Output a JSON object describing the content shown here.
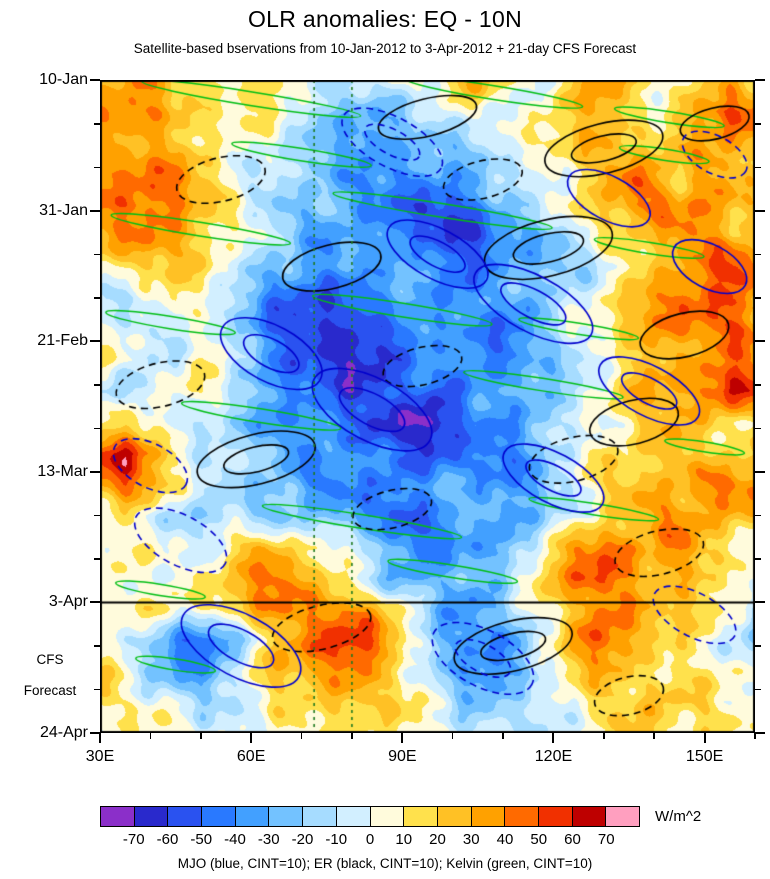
{
  "header": {
    "title": "OLR anomalies: EQ - 10N",
    "subtitle": "Satellite-based bservations from 10-Jan-2012 to 3-Apr-2012 + 21-day CFS Forecast"
  },
  "left_annotation": {
    "line1": "CFS",
    "line2": "Forecast"
  },
  "chart_data": {
    "type": "heatmap",
    "title": "OLR anomalies: EQ - 10N",
    "subtitle": "Satellite-based bservations from 10-Jan-2012 to 3-Apr-2012 + 21-day CFS Forecast",
    "units_label": "W/m^2",
    "legend": "MJO (blue, CINT=10); ER (black, CINT=10); Kelvin (green, CINT=10)",
    "x_axis": {
      "label_units": "degrees east",
      "range": [
        30,
        160
      ],
      "major_ticks": [
        30,
        60,
        90,
        120,
        150
      ],
      "major_labels": [
        "30E",
        "60E",
        "90E",
        "120E",
        "150E"
      ],
      "minor_step": 10
    },
    "y_axis": {
      "range_days": [
        0,
        105
      ],
      "major_ticks_days": [
        0,
        21,
        42,
        63,
        84,
        105
      ],
      "major_labels": [
        "10-Jan",
        "31-Jan",
        "21-Feb",
        "13-Mar",
        "3-Apr",
        "24-Apr"
      ],
      "minor_step_days": 7,
      "forecast_start_day": 84
    },
    "colorbar": {
      "boundaries": [
        -70,
        -60,
        -50,
        -40,
        -30,
        -20,
        -10,
        0,
        10,
        20,
        30,
        40,
        50,
        60,
        70
      ],
      "colors": [
        "#8B2FC9",
        "#2929CC",
        "#2A52F0",
        "#2979FF",
        "#42A0FF",
        "#73C2FF",
        "#A6DCFF",
        "#D2EFFF",
        "#FFFBDC",
        "#FFE14C",
        "#FFC125",
        "#FFA100",
        "#FF6A00",
        "#F13000",
        "#BE0000",
        "#FF9FBF"
      ]
    },
    "field": {
      "comment_units": "OLR anomaly W/m^2, coarse estimated grid",
      "lons_start": 30,
      "lons_step": 5,
      "days_start": 0,
      "days_step": 5,
      "values": [
        [
          20,
          25,
          30,
          25,
          20,
          15,
          10,
          15,
          10,
          -10,
          -20,
          -15,
          0,
          10,
          20,
          30,
          20,
          10,
          10,
          20,
          25,
          20,
          10,
          0,
          10,
          30,
          20
        ],
        [
          30,
          35,
          40,
          30,
          20,
          10,
          5,
          0,
          -10,
          -20,
          -30,
          -30,
          -20,
          -10,
          0,
          10,
          10,
          0,
          10,
          20,
          30,
          20,
          10,
          20,
          40,
          60,
          50
        ],
        [
          20,
          25,
          30,
          20,
          10,
          5,
          0,
          -5,
          -10,
          -20,
          -30,
          -40,
          -30,
          -30,
          -20,
          -10,
          0,
          10,
          20,
          30,
          30,
          20,
          30,
          30,
          20,
          30,
          20
        ],
        [
          40,
          45,
          40,
          30,
          20,
          10,
          0,
          -10,
          -10,
          -20,
          -30,
          -40,
          -50,
          -40,
          -30,
          -30,
          -20,
          -10,
          10,
          20,
          30,
          40,
          30,
          20,
          30,
          20,
          10
        ],
        [
          50,
          55,
          50,
          40,
          20,
          10,
          0,
          -10,
          -20,
          -20,
          -30,
          -40,
          -50,
          -60,
          -50,
          -40,
          -30,
          -20,
          0,
          20,
          30,
          40,
          40,
          30,
          40,
          30,
          20
        ],
        [
          30,
          40,
          40,
          30,
          20,
          10,
          0,
          -10,
          -20,
          -30,
          -30,
          -40,
          -50,
          -50,
          -60,
          -50,
          -40,
          -30,
          -20,
          0,
          10,
          20,
          30,
          40,
          30,
          20,
          20
        ],
        [
          10,
          20,
          20,
          10,
          10,
          0,
          -10,
          -20,
          -30,
          -30,
          -20,
          -30,
          -40,
          -40,
          -50,
          -50,
          -40,
          -30,
          -20,
          -10,
          0,
          10,
          20,
          30,
          40,
          50,
          40
        ],
        [
          0,
          -10,
          0,
          10,
          0,
          -10,
          -20,
          -40,
          -50,
          -60,
          -50,
          -40,
          -30,
          -30,
          -40,
          -40,
          -40,
          -30,
          -10,
          0,
          10,
          20,
          30,
          40,
          50,
          40,
          30
        ],
        [
          10,
          0,
          -10,
          0,
          0,
          -10,
          -30,
          -50,
          -70,
          -70,
          -60,
          -50,
          -40,
          -30,
          -40,
          -50,
          -50,
          -40,
          -20,
          0,
          10,
          20,
          30,
          40,
          50,
          60,
          40
        ],
        [
          10,
          10,
          0,
          -10,
          0,
          -10,
          -20,
          -40,
          -60,
          -60,
          -60,
          -50,
          -50,
          -40,
          -40,
          -40,
          -50,
          -40,
          -30,
          -10,
          10,
          20,
          30,
          30,
          40,
          40,
          30
        ],
        [
          0,
          -10,
          -10,
          0,
          10,
          0,
          -10,
          -30,
          -40,
          -50,
          -60,
          -60,
          -50,
          -50,
          -50,
          -40,
          -40,
          -30,
          -20,
          0,
          10,
          20,
          20,
          30,
          40,
          60,
          50
        ],
        [
          10,
          20,
          10,
          0,
          -10,
          -20,
          -30,
          -40,
          -40,
          -50,
          -50,
          -60,
          -60,
          -70,
          -60,
          -50,
          -40,
          -30,
          -20,
          -10,
          0,
          10,
          20,
          30,
          30,
          20,
          10
        ],
        [
          50,
          60,
          40,
          20,
          0,
          -10,
          -20,
          -30,
          -40,
          -40,
          -50,
          -40,
          -40,
          -50,
          -50,
          -40,
          -40,
          -30,
          -20,
          -10,
          10,
          20,
          20,
          30,
          20,
          30,
          20
        ],
        [
          30,
          40,
          30,
          10,
          0,
          -10,
          -20,
          -30,
          -40,
          -50,
          -40,
          -50,
          -40,
          -40,
          -30,
          -40,
          -30,
          -30,
          -20,
          0,
          10,
          20,
          30,
          30,
          40,
          50,
          40
        ],
        [
          10,
          10,
          0,
          -10,
          -20,
          -10,
          -20,
          -20,
          -30,
          -30,
          -40,
          -40,
          -50,
          -40,
          -40,
          -30,
          -40,
          -30,
          -20,
          -10,
          10,
          20,
          30,
          40,
          40,
          30,
          30
        ],
        [
          10,
          0,
          10,
          10,
          0,
          10,
          20,
          20,
          10,
          0,
          -10,
          -20,
          -30,
          -40,
          -40,
          -30,
          -20,
          -10,
          10,
          30,
          40,
          40,
          30,
          40,
          30,
          20,
          10
        ],
        [
          -10,
          0,
          0,
          10,
          10,
          20,
          30,
          40,
          30,
          20,
          0,
          -20,
          -30,
          -30,
          -30,
          -20,
          -10,
          10,
          30,
          40,
          50,
          40,
          40,
          30,
          20,
          10,
          10
        ],
        [
          0,
          10,
          10,
          0,
          10,
          20,
          30,
          40,
          50,
          50,
          40,
          20,
          0,
          -20,
          -30,
          -30,
          -20,
          0,
          20,
          30,
          40,
          40,
          30,
          20,
          10,
          0,
          -10
        ],
        [
          0,
          -10,
          -20,
          -40,
          -40,
          -30,
          -10,
          20,
          40,
          50,
          50,
          40,
          20,
          -10,
          -30,
          -40,
          -30,
          -10,
          10,
          30,
          40,
          30,
          20,
          10,
          0,
          0,
          -10
        ],
        [
          10,
          0,
          -20,
          -30,
          -40,
          -20,
          0,
          20,
          30,
          40,
          40,
          30,
          10,
          -10,
          -30,
          -30,
          -30,
          -20,
          0,
          20,
          30,
          30,
          20,
          20,
          10,
          10,
          0
        ],
        [
          10,
          10,
          0,
          -10,
          -20,
          -10,
          0,
          10,
          20,
          30,
          30,
          20,
          10,
          0,
          -10,
          -20,
          -20,
          -10,
          0,
          10,
          20,
          20,
          30,
          20,
          10,
          0,
          0
        ],
        [
          0,
          10,
          10,
          0,
          -10,
          0,
          0,
          10,
          10,
          20,
          20,
          10,
          0,
          0,
          -10,
          -10,
          -20,
          -10,
          0,
          10,
          10,
          20,
          20,
          10,
          10,
          0,
          0
        ]
      ]
    },
    "overlays": {
      "vertical_dashed_green_lons": [
        72.5,
        80
      ],
      "vertical_dashed_green_color": "#1F7A1F",
      "forecast_divider_day": 84,
      "mjo_blue": {
        "color": "#0000CD",
        "solid": [
          [
            64,
            44,
            11,
            4.5,
            28
          ],
          [
            84,
            53,
            13,
            5,
            28
          ],
          [
            97,
            28,
            11,
            4,
            28
          ],
          [
            116,
            36,
            13,
            4.5,
            28
          ],
          [
            139,
            50,
            11,
            4,
            28
          ],
          [
            131,
            19,
            9,
            3.5,
            28
          ],
          [
            151,
            30,
            8,
            3.5,
            28
          ],
          [
            58,
            91,
            13,
            5,
            28
          ],
          [
            120,
            64,
            11,
            4,
            28
          ]
        ],
        "dashed": [
          [
            88,
            10,
            11,
            4,
            28
          ],
          [
            40,
            62,
            8,
            3.5,
            28
          ],
          [
            46,
            74,
            10,
            4,
            28
          ],
          [
            106,
            93,
            11,
            4.5,
            28
          ],
          [
            152,
            12,
            7,
            3,
            28
          ],
          [
            148,
            86,
            9,
            3.5,
            28
          ]
        ]
      },
      "er_black": {
        "color": "#000000",
        "solid": [
          [
            95,
            6,
            10,
            3,
            -14
          ],
          [
            130,
            11,
            12,
            4,
            -14
          ],
          [
            152,
            7,
            7,
            2.5,
            -14
          ],
          [
            119,
            27,
            13,
            4.5,
            -14
          ],
          [
            76,
            30,
            10,
            3.5,
            -14
          ],
          [
            146,
            41,
            9,
            3.5,
            -14
          ],
          [
            61,
            61,
            12,
            4,
            -14
          ],
          [
            112,
            91,
            12,
            4,
            -14
          ],
          [
            136,
            55,
            9,
            3.5,
            -14
          ]
        ],
        "dashed": [
          [
            54,
            16,
            9,
            3.5,
            -14
          ],
          [
            42,
            49,
            9,
            3.5,
            -14
          ],
          [
            94,
            46,
            8,
            3,
            -14
          ],
          [
            88,
            69,
            8,
            3,
            -14
          ],
          [
            124,
            61,
            9,
            3.5,
            -14
          ],
          [
            141,
            76,
            9,
            3.5,
            -14
          ],
          [
            74,
            88,
            10,
            3.5,
            -14
          ],
          [
            135,
            99,
            7,
            3,
            -14
          ],
          [
            106,
            16,
            8,
            3,
            -14
          ]
        ]
      },
      "kelvin_green": {
        "color": "#00BE14",
        "rot": 9,
        "lines": [
          [
            60,
            3,
            22,
            1.1
          ],
          [
            108,
            2,
            18,
            1.1
          ],
          [
            143,
            6,
            11,
            0.9
          ],
          [
            70,
            12,
            14,
            1
          ],
          [
            142,
            12,
            9,
            0.9
          ],
          [
            50,
            24,
            18,
            1.1
          ],
          [
            98,
            21,
            22,
            1.1
          ],
          [
            139,
            27,
            11,
            0.9
          ],
          [
            44,
            39,
            13,
            1
          ],
          [
            90,
            37,
            18,
            1.1
          ],
          [
            125,
            40,
            12,
            0.9
          ],
          [
            62,
            54,
            16,
            1.1
          ],
          [
            118,
            49,
            16,
            1
          ],
          [
            150,
            59,
            8,
            0.8
          ],
          [
            82,
            71,
            20,
            1.1
          ],
          [
            128,
            69,
            13,
            0.9
          ],
          [
            42,
            82,
            9,
            0.9
          ],
          [
            100,
            79,
            13,
            1
          ],
          [
            45,
            94,
            8,
            0.9
          ]
        ]
      }
    }
  }
}
